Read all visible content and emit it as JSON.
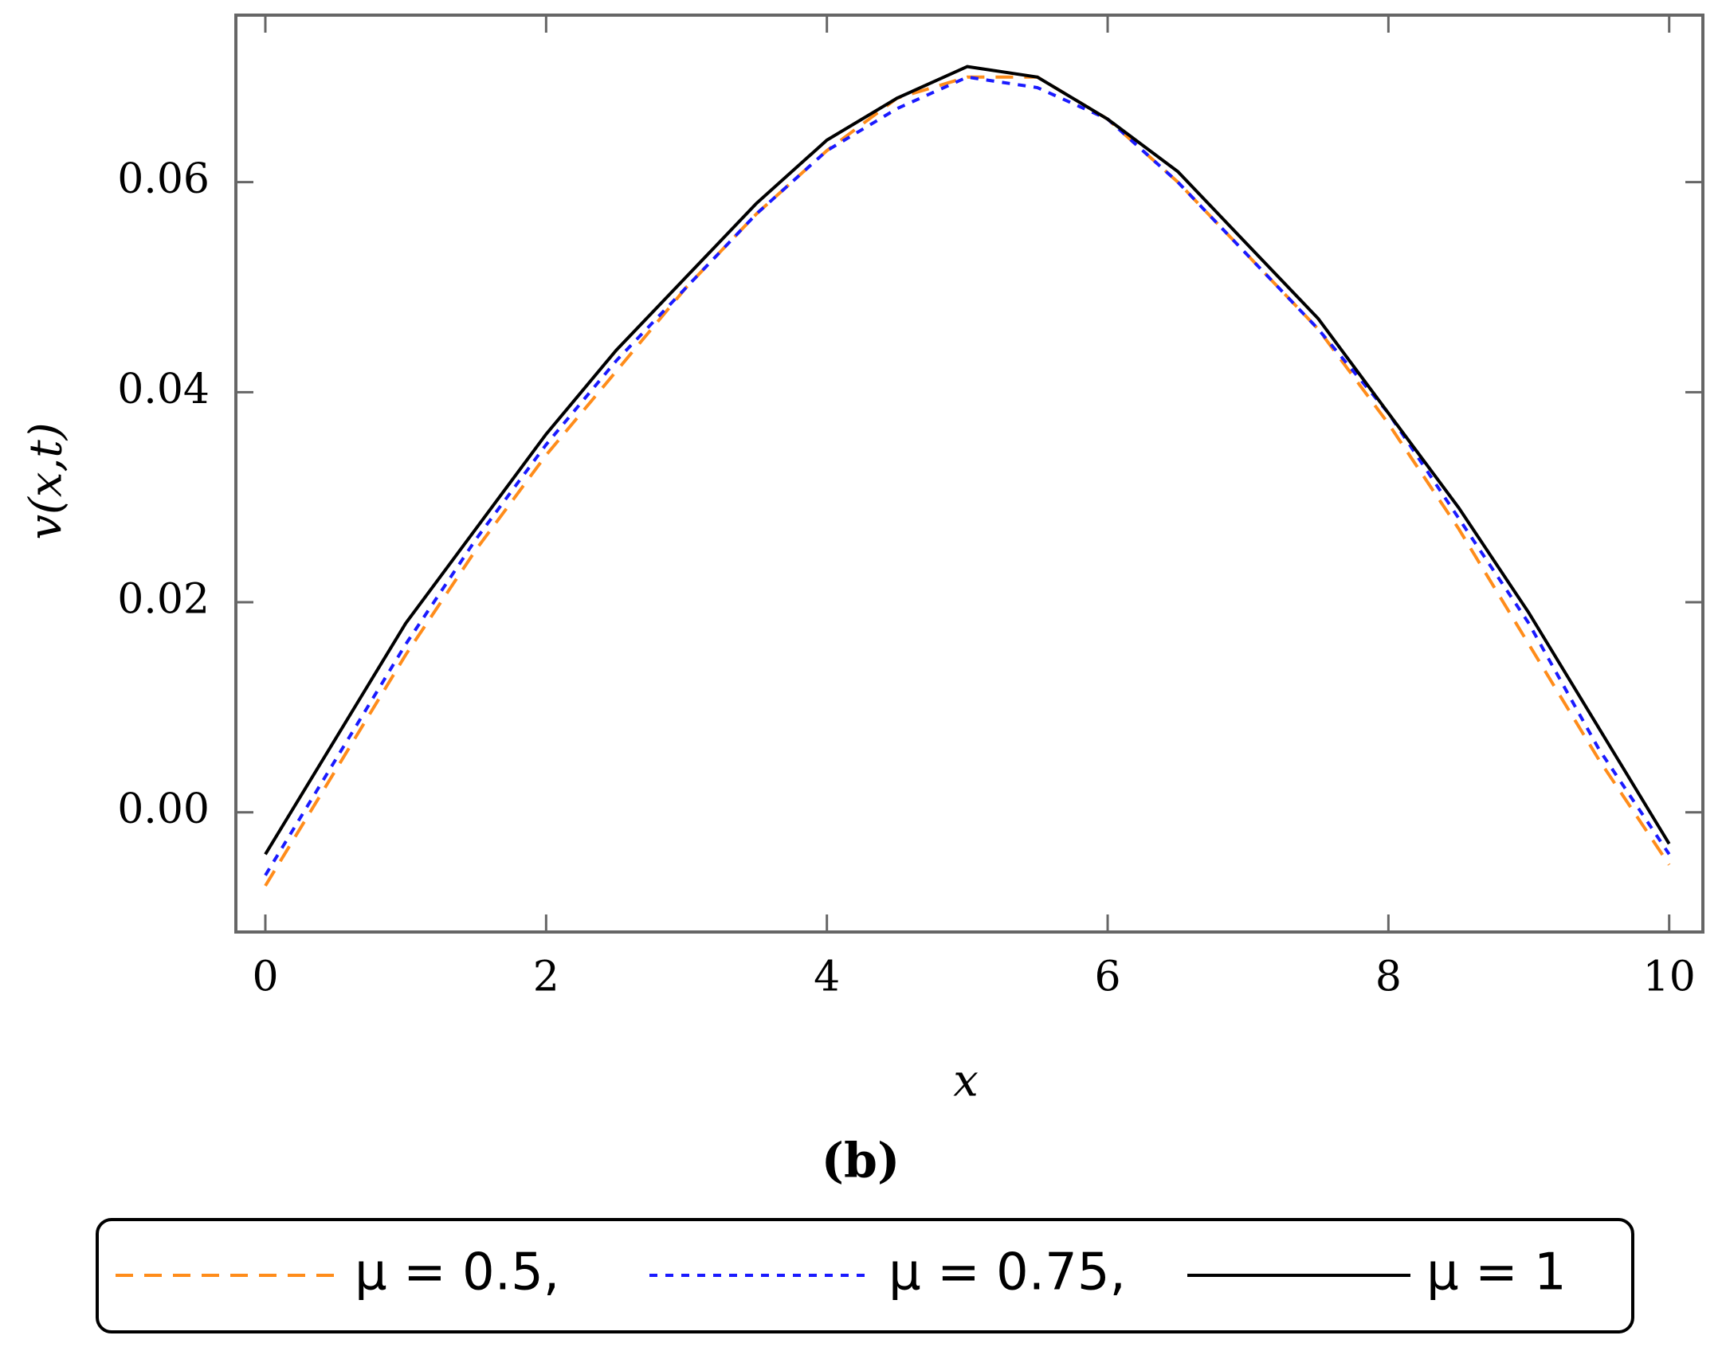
{
  "chart_data": {
    "type": "line",
    "caption": "(b)",
    "x_label": "x",
    "y_label": "v(x,t)",
    "x": [
      0,
      0.5,
      1,
      1.5,
      2,
      2.5,
      3,
      3.5,
      4,
      4.5,
      5,
      5.5,
      6,
      6.5,
      7,
      7.5,
      8,
      8.5,
      9,
      9.5,
      10
    ],
    "series": [
      {
        "name": "μ = 0.5,",
        "color": "#ff8c1a",
        "dash": "dashed",
        "values": [
          -0.007,
          0.004,
          0.015,
          0.025,
          0.034,
          0.042,
          0.05,
          0.057,
          0.063,
          0.068,
          0.07,
          0.07,
          0.066,
          0.06,
          0.053,
          0.046,
          0.037,
          0.027,
          0.016,
          0.005,
          -0.005
        ]
      },
      {
        "name": "μ = 0.75,",
        "color": "#1a1aff",
        "dash": "dotted",
        "values": [
          -0.006,
          0.005,
          0.016,
          0.026,
          0.035,
          0.043,
          0.05,
          0.057,
          0.063,
          0.067,
          0.07,
          0.069,
          0.066,
          0.06,
          0.053,
          0.046,
          0.038,
          0.028,
          0.018,
          0.006,
          -0.004
        ]
      },
      {
        "name": "μ = 1",
        "color": "#000000",
        "dash": "solid",
        "values": [
          -0.004,
          0.007,
          0.018,
          0.027,
          0.036,
          0.044,
          0.051,
          0.058,
          0.064,
          0.068,
          0.071,
          0.07,
          0.066,
          0.061,
          0.054,
          0.047,
          0.038,
          0.029,
          0.019,
          0.008,
          -0.003
        ]
      }
    ],
    "xlim": [
      -0.21,
      10.24
    ],
    "ylim": [
      -0.0114,
      0.0759
    ],
    "xticks": [
      0,
      2,
      4,
      6,
      8,
      10
    ],
    "yticks": [
      {
        "value": 0,
        "label": "0.00"
      },
      0.02,
      0.04,
      0.06
    ],
    "legend": "bottom"
  }
}
